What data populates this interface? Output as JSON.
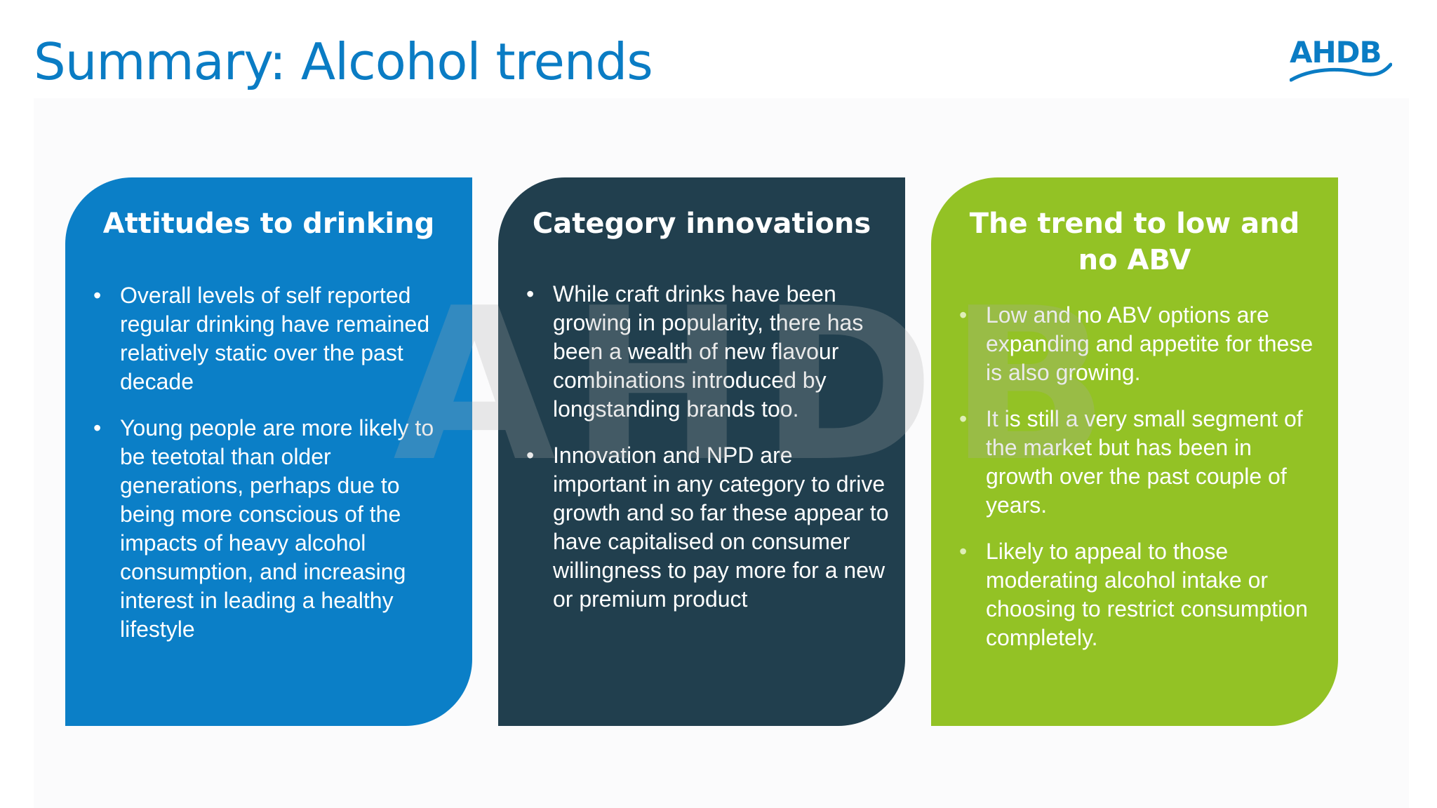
{
  "page": {
    "title": "Summary: Alcohol trends",
    "logo_text": "AHDB",
    "watermark_text": "AHDB"
  },
  "colors": {
    "title": "#0a7cc4",
    "card_attitudes": "#0b7fc7",
    "card_innovations": "#213f4e",
    "card_low_no_abv": "#93c225"
  },
  "cards": [
    {
      "heading": "Attitudes to drinking",
      "bullets": [
        "Overall levels of self reported regular drinking have remained relatively static over the past decade",
        "Young people are more likely to be teetotal than older generations, perhaps due to being more conscious of the impacts of heavy alcohol consumption, and increasing interest in leading a healthy lifestyle"
      ]
    },
    {
      "heading": "Category innovations",
      "bullets": [
        "While craft drinks have been growing in popularity, there has been a wealth of new flavour combinations introduced by longstanding brands too.",
        "Innovation and NPD are important in any category to drive growth and so far these appear to have capitalised on consumer willingness to pay more for a new or premium product"
      ]
    },
    {
      "heading": "The trend to low and no ABV",
      "bullets": [
        "Low and no ABV options are expanding and appetite for these is also growing.",
        "It is still a very small segment of the market but has been in growth over the past couple of years.",
        "Likely to appeal to those moderating alcohol intake or choosing to restrict consumption completely."
      ]
    }
  ]
}
